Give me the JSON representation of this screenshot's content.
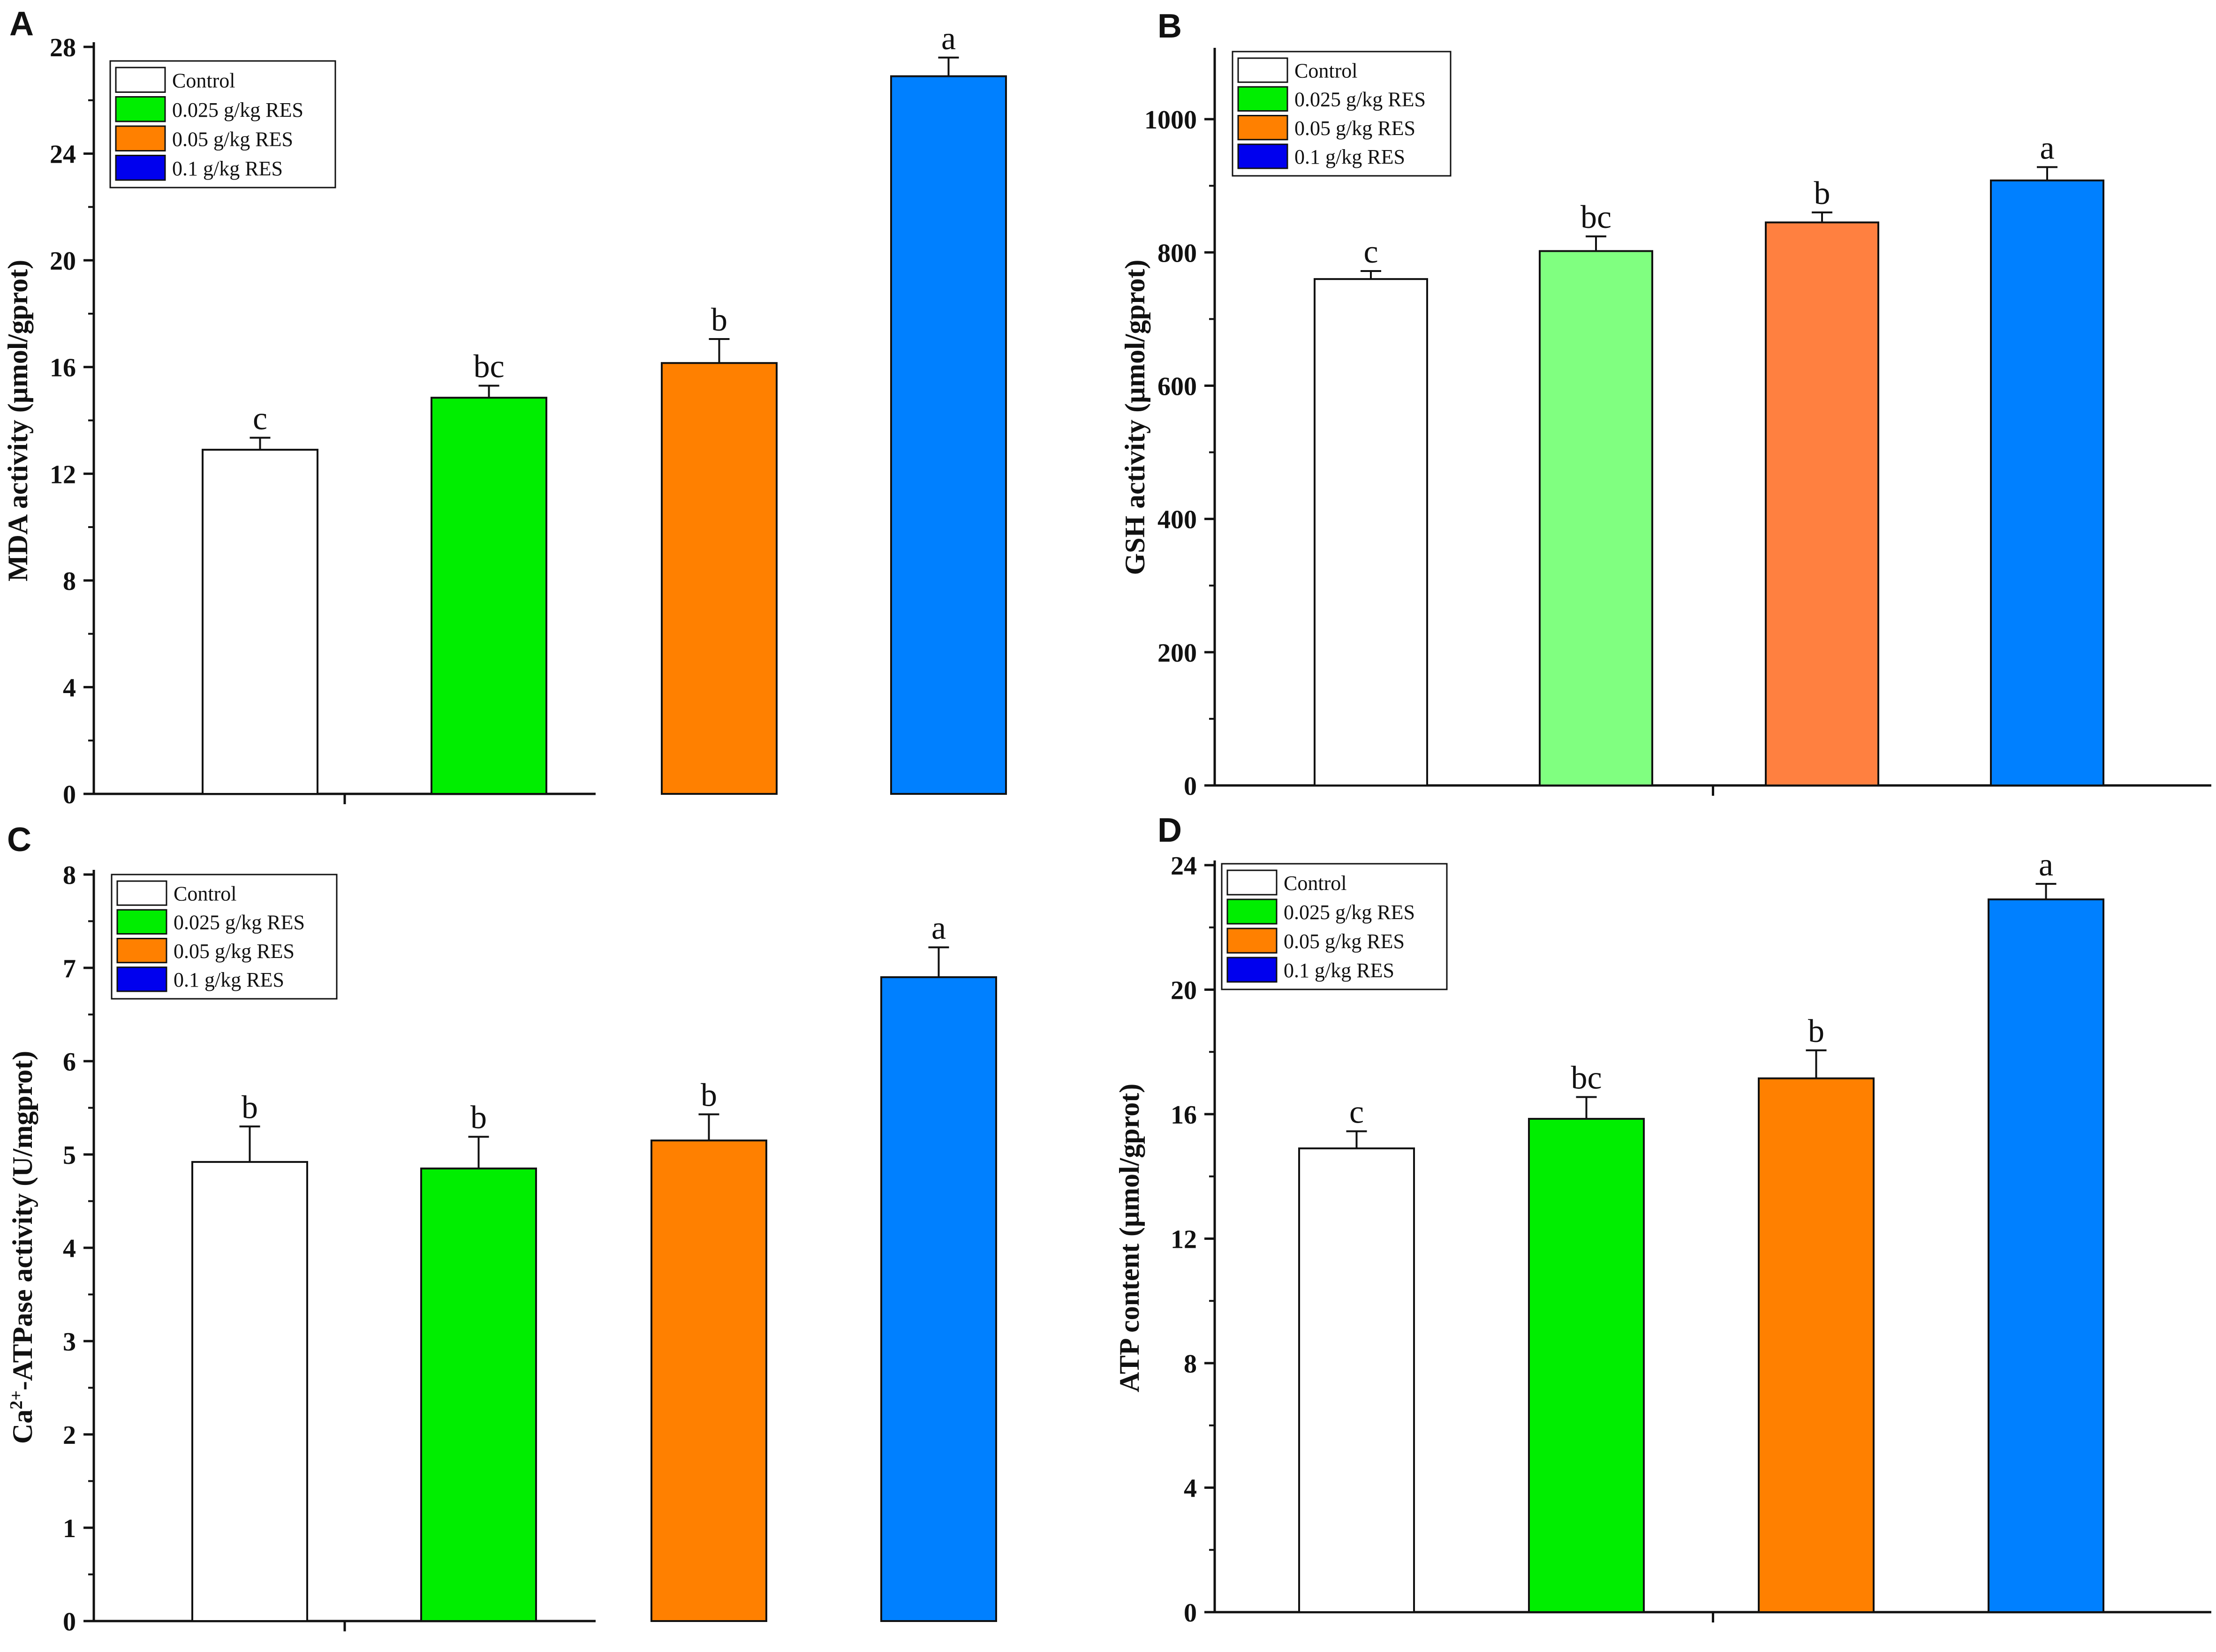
{
  "legend": {
    "entries": [
      "Control",
      "0.025 g/kg RES",
      "0.05 g/kg RES",
      "0.1 g/kg RES"
    ],
    "colors": [
      "#ffffff",
      "#00ee00",
      "#ff8000",
      "#0000ee"
    ]
  },
  "chart_data": [
    {
      "panel": "A",
      "type": "bar",
      "title": "",
      "xlabel": "",
      "ylabel": "MDA activity (μmol/gprot)",
      "ylim": [
        0,
        28
      ],
      "yticks": [
        0,
        4,
        8,
        12,
        16,
        20,
        24,
        28
      ],
      "categories": [
        "Control",
        "0.025 g/kg RES",
        "0.05 g/kg RES",
        "0.1 g/kg RES"
      ],
      "values": [
        12.9,
        14.85,
        16.15,
        26.9
      ],
      "errors": [
        0.45,
        0.45,
        0.9,
        0.7
      ],
      "labels": [
        "c",
        "bc",
        "b",
        "a"
      ],
      "colors": [
        "#ffffff",
        "#00ee00",
        "#ff8000",
        "#0080ff"
      ],
      "legend_position": "top-left"
    },
    {
      "panel": "B",
      "type": "bar",
      "title": "",
      "xlabel": "",
      "ylabel": "GSH activity (μmol/gprot)",
      "ylim": [
        0,
        1100
      ],
      "yticks": [
        0,
        200,
        400,
        600,
        800,
        1000
      ],
      "categories": [
        "Control",
        "0.025 g/kg RES",
        "0.05 g/kg RES",
        "0.1 g/kg RES"
      ],
      "values": [
        760,
        802,
        845,
        908
      ],
      "errors": [
        12,
        22,
        15,
        20
      ],
      "labels": [
        "c",
        "bc",
        "b",
        "a"
      ],
      "colors": [
        "#ffffff",
        "#80ff80",
        "#ff8040",
        "#0080ff"
      ],
      "legend_position": "top-left"
    },
    {
      "panel": "C",
      "type": "bar",
      "title": "",
      "xlabel": "",
      "ylabel_main": "Ca",
      "ylabel_sup": "2+",
      "ylabel_rest": "-ATPase activity (U/mgprot)",
      "ylim": [
        0,
        8
      ],
      "yticks": [
        0,
        1,
        2,
        3,
        4,
        5,
        6,
        7,
        8
      ],
      "categories": [
        "Control",
        "0.025 g/kg RES",
        "0.05 g/kg RES",
        "0.1 g/kg RES"
      ],
      "values": [
        4.92,
        4.85,
        5.15,
        6.9
      ],
      "errors": [
        0.38,
        0.34,
        0.28,
        0.32
      ],
      "labels": [
        "b",
        "b",
        "b",
        "a"
      ],
      "colors": [
        "#ffffff",
        "#00ee00",
        "#ff8000",
        "#0080ff"
      ],
      "legend_position": "top-left"
    },
    {
      "panel": "D",
      "type": "bar",
      "title": "",
      "xlabel": "",
      "ylabel": "ATP content (μmol/gprot)",
      "ylim": [
        0,
        24
      ],
      "yticks": [
        0,
        4,
        8,
        12,
        16,
        20,
        24
      ],
      "categories": [
        "Control",
        "0.025 g/kg RES",
        "0.05 g/kg RES",
        "0.1 g/kg RES"
      ],
      "values": [
        14.9,
        15.85,
        17.15,
        22.9
      ],
      "errors": [
        0.55,
        0.7,
        0.9,
        0.5
      ],
      "labels": [
        "c",
        "bc",
        "b",
        "a"
      ],
      "colors": [
        "#ffffff",
        "#00ee00",
        "#ff8000",
        "#0080ff"
      ],
      "legend_position": "top-left"
    }
  ]
}
